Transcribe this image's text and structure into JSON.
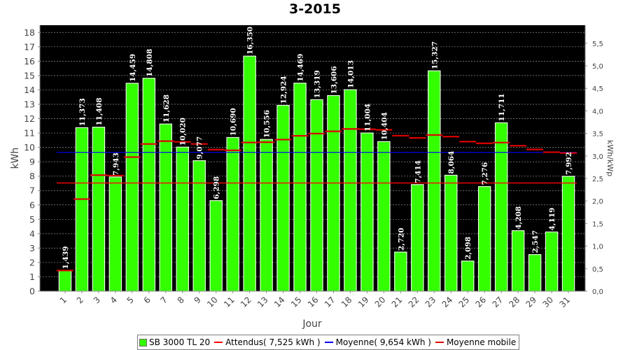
{
  "title": "3-2015",
  "colors": {
    "plot_bg": "#000000",
    "bar": "#33ff00",
    "bar_edge": "#e8ffe0",
    "attendus": "#ff0000",
    "moyenne": "#0000ff",
    "mobile": "#e00000",
    "grid": "#909090"
  },
  "chart_data": {
    "type": "bar",
    "title": "3-2015",
    "xlabel": "Jour",
    "ylabel": "kWh",
    "y2label": "kWh/kWp",
    "categories": [
      "1",
      "2",
      "3",
      "4",
      "5",
      "6",
      "7",
      "8",
      "9",
      "10",
      "11",
      "12",
      "13",
      "14",
      "15",
      "16",
      "17",
      "18",
      "19",
      "20",
      "21",
      "22",
      "23",
      "24",
      "25",
      "26",
      "27",
      "28",
      "29",
      "30",
      "31"
    ],
    "series": [
      {
        "name": "SB 3000 TL 20",
        "type": "bar",
        "values": [
          1.439,
          11.373,
          11.408,
          7.943,
          14.459,
          14.808,
          11.628,
          10.02,
          9.077,
          6.298,
          10.69,
          16.35,
          10.556,
          12.924,
          14.469,
          13.319,
          13.606,
          14.013,
          11.004,
          10.404,
          2.72,
          7.414,
          15.327,
          8.064,
          2.098,
          7.276,
          11.711,
          4.208,
          2.547,
          4.119,
          7.992
        ],
        "labels": [
          "1,439",
          "11,373",
          "11,408",
          "7,943",
          "14,459",
          "14,808",
          "11,628",
          "10,020",
          "9,077",
          "6,298",
          "10,690",
          "16,350",
          "10,556",
          "12,924",
          "14,469",
          "13,319",
          "13,606",
          "14,013",
          "11,004",
          "10,404",
          "2,720",
          "7,414",
          "15,327",
          "8,064",
          "2,098",
          "7,276",
          "11,711",
          "4,208",
          "2,547",
          "4,119",
          "7,992"
        ]
      },
      {
        "name": "Attendus( 7,525 kWh )",
        "type": "hline",
        "value": 7.525
      },
      {
        "name": "Moyenne( 9,654 kWh )",
        "type": "hline",
        "value": 9.654
      },
      {
        "name": "Moyenne mobile",
        "type": "step",
        "values": [
          1.439,
          6.406,
          8.073,
          8.041,
          9.325,
          10.239,
          10.437,
          10.385,
          10.24,
          9.846,
          9.797,
          10.343,
          10.36,
          10.544,
          10.806,
          10.963,
          11.12,
          11.281,
          11.266,
          11.223,
          10.818,
          10.663,
          10.866,
          10.75,
          10.404,
          10.284,
          10.337,
          10.118,
          9.857,
          9.666,
          9.612
        ]
      }
    ],
    "ylim": [
      0,
      18.5
    ],
    "yticks": [
      0,
      1,
      2,
      3,
      4,
      5,
      6,
      7,
      8,
      9,
      10,
      11,
      12,
      13,
      14,
      15,
      16,
      17,
      18
    ],
    "y2lim": [
      0,
      5.9
    ],
    "y2ticks": [
      "0,0",
      "0,5",
      "1,0",
      "1,5",
      "2,0",
      "2,5",
      "3,0",
      "3,5",
      "4,0",
      "4,5",
      "5,0",
      "5,5"
    ],
    "grid": true,
    "legend_position": "bottom"
  },
  "legend": [
    {
      "label": "SB 3000 TL 20",
      "kind": "box",
      "color": "#33ff00"
    },
    {
      "label": "Attendus( 7,525 kWh )",
      "kind": "line",
      "color": "#ff0000"
    },
    {
      "label": "Moyenne( 9,654 kWh )",
      "kind": "line",
      "color": "#0000ff"
    },
    {
      "label": "Moyenne mobile",
      "kind": "line",
      "color": "#e00000"
    }
  ]
}
